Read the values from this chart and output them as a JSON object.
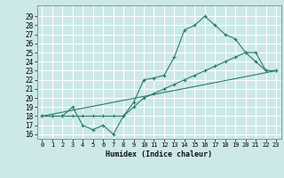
{
  "xlabel": "Humidex (Indice chaleur)",
  "bg_color": "#cce8e8",
  "grid_color": "#ffffff",
  "line_color": "#2d7a6e",
  "xlim": [
    -0.5,
    23.5
  ],
  "ylim": [
    15.5,
    30.2
  ],
  "xticks": [
    0,
    1,
    2,
    3,
    4,
    5,
    6,
    7,
    8,
    9,
    10,
    11,
    12,
    13,
    14,
    15,
    16,
    17,
    18,
    19,
    20,
    21,
    22,
    23
  ],
  "yticks": [
    16,
    17,
    18,
    19,
    20,
    21,
    22,
    23,
    24,
    25,
    26,
    27,
    28,
    29
  ],
  "line1_x": [
    0,
    1,
    2,
    3,
    4,
    5,
    6,
    7,
    8,
    9,
    10,
    11,
    12,
    13,
    14,
    15,
    16,
    17,
    18,
    19,
    20,
    21,
    22,
    23
  ],
  "line1_y": [
    18,
    18,
    18,
    19,
    17,
    16.5,
    17,
    16,
    18,
    19.5,
    22,
    22.2,
    22.5,
    24.5,
    27.5,
    28,
    29,
    28,
    27,
    26.5,
    25,
    24,
    23,
    23
  ],
  "line2_x": [
    0,
    1,
    2,
    3,
    4,
    5,
    6,
    7,
    8,
    9,
    10,
    11,
    12,
    13,
    14,
    15,
    16,
    17,
    18,
    19,
    20,
    21,
    22,
    23
  ],
  "line2_y": [
    18,
    18,
    18,
    18,
    18,
    18,
    18,
    18,
    18,
    19,
    20,
    20.5,
    21,
    21.5,
    22,
    22.5,
    23,
    23.5,
    24,
    24.5,
    25,
    25,
    23,
    23
  ],
  "line3_x": [
    0,
    23
  ],
  "line3_y": [
    18,
    23
  ]
}
